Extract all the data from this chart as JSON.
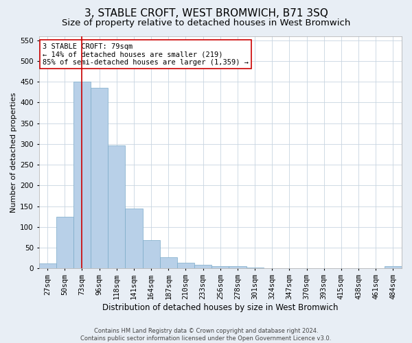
{
  "title": "3, STABLE CROFT, WEST BROMWICH, B71 3SQ",
  "subtitle": "Size of property relative to detached houses in West Bromwich",
  "xlabel": "Distribution of detached houses by size in West Bromwich",
  "ylabel": "Number of detached properties",
  "footer_line1": "Contains HM Land Registry data © Crown copyright and database right 2024.",
  "footer_line2": "Contains public sector information licensed under the Open Government Licence v3.0.",
  "categories": [
    "27sqm",
    "50sqm",
    "73sqm",
    "96sqm",
    "118sqm",
    "141sqm",
    "164sqm",
    "187sqm",
    "210sqm",
    "233sqm",
    "256sqm",
    "278sqm",
    "301sqm",
    "324sqm",
    "347sqm",
    "370sqm",
    "393sqm",
    "415sqm",
    "438sqm",
    "461sqm",
    "484sqm"
  ],
  "values": [
    12,
    125,
    450,
    435,
    297,
    145,
    68,
    27,
    14,
    9,
    6,
    5,
    2,
    1,
    1,
    1,
    1,
    1,
    0,
    0,
    6
  ],
  "bar_color": "#b8d0e8",
  "bar_edge_color": "#7aaac8",
  "vline_x_index": 2,
  "vline_color": "#cc0000",
  "annotation_line1": "3 STABLE CROFT: 79sqm",
  "annotation_line2": "← 14% of detached houses are smaller (219)",
  "annotation_line3": "85% of semi-detached houses are larger (1,359) →",
  "annotation_box_facecolor": "white",
  "annotation_box_edgecolor": "#cc0000",
  "ylim": [
    0,
    560
  ],
  "yticks": [
    0,
    50,
    100,
    150,
    200,
    250,
    300,
    350,
    400,
    450,
    500,
    550
  ],
  "background_color": "#e8eef5",
  "plot_background_color": "white",
  "grid_color": "#c8d4e0",
  "title_fontsize": 11,
  "subtitle_fontsize": 9.5,
  "xlabel_fontsize": 8.5,
  "ylabel_fontsize": 8,
  "tick_fontsize": 7.5,
  "annotation_fontsize": 7.5,
  "footer_fontsize": 6
}
